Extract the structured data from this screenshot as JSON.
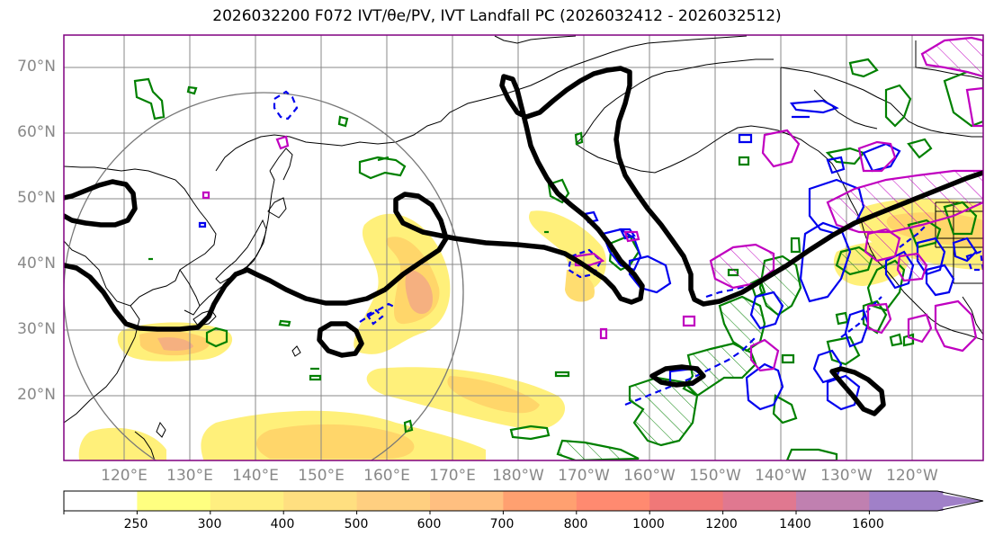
{
  "title": "2026032200 F072 IVT/θe/PV, IVT Landfall PC (2026032412 - 2026032512)",
  "lat_labels": [
    "70°N",
    "60°N",
    "50°N",
    "40°N",
    "30°N",
    "20°N"
  ],
  "lon_labels": [
    "120°E",
    "130°E",
    "140°E",
    "150°E",
    "160°E",
    "170°E",
    "180°W",
    "170°W",
    "160°W",
    "150°W",
    "140°W",
    "130°W",
    "120°W"
  ],
  "colorbar": {
    "ticks": [
      "250",
      "300",
      "400",
      "500",
      "600",
      "700",
      "800",
      "1000",
      "1200",
      "1400",
      "1600"
    ],
    "colors": [
      "#ffffff",
      "#ffff80",
      "#ffef80",
      "#ffdf80",
      "#ffcf80",
      "#ffbf80",
      "#ffa070",
      "#ff8a70",
      "#f07878",
      "#e07890",
      "#c080b0",
      "#a080c8"
    ]
  },
  "colors": {
    "ivt_fill_light": "#ffec70",
    "ivt_fill_mid": "#ffc060",
    "ivt_fill_core": "#f0a080",
    "theta_e": "#000000",
    "pv_positive": "#008000",
    "pv_blue": "#0000ee",
    "pv_magenta": "#c000c0",
    "coast": "#000000",
    "grid": "#888888",
    "circle": "#777777"
  }
}
